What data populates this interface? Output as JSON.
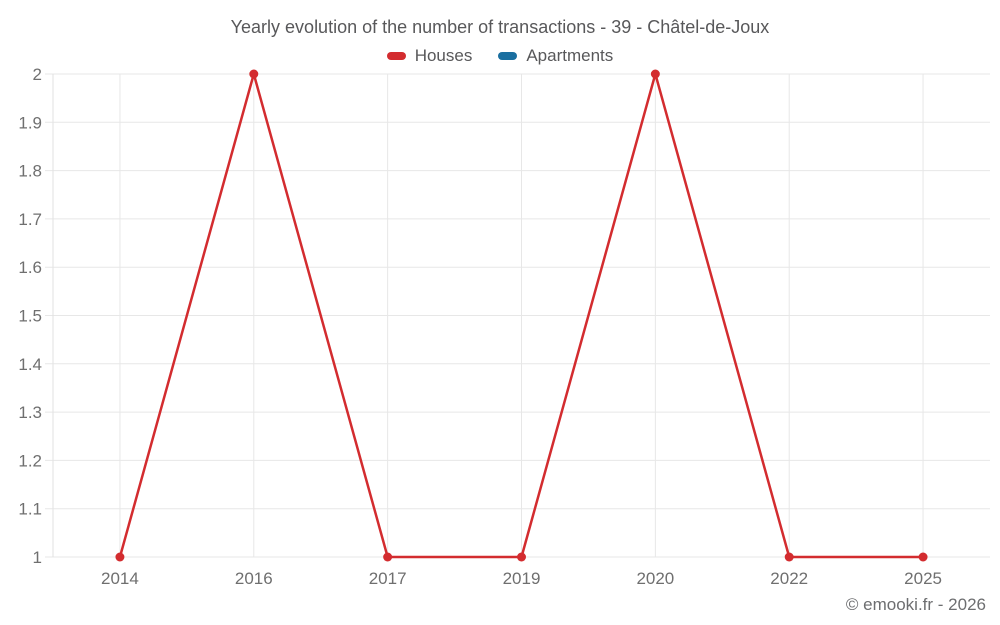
{
  "header": {
    "title": "Yearly evolution of the number of transactions - 39 - Châtel-de-Joux"
  },
  "footer": {
    "watermark": "© emooki.fr - 2026"
  },
  "chart_data": {
    "type": "line",
    "title": "Yearly evolution of the number of transactions - 39 - Châtel-de-Joux",
    "categories": [
      "2014",
      "2016",
      "2017",
      "2019",
      "2020",
      "2022",
      "2025"
    ],
    "series": [
      {
        "name": "Houses",
        "color": "#d32c2f",
        "values": [
          1,
          2,
          1,
          1,
          2,
          1,
          1
        ]
      },
      {
        "name": "Apartments",
        "color": "#1a6fa0",
        "values": []
      }
    ],
    "xlabel": "",
    "ylabel": "",
    "ylim": [
      1,
      2
    ],
    "y_tick_values": [
      1,
      1.1,
      1.2,
      1.3,
      1.4,
      1.5,
      1.6,
      1.7,
      1.8,
      1.9,
      2
    ],
    "y_tick_labels": [
      "1",
      "1.1",
      "1.2",
      "1.3",
      "1.4",
      "1.5",
      "1.6",
      "1.7",
      "1.8",
      "1.9",
      "2"
    ],
    "grid": "both",
    "legend_position": "top",
    "colors": {
      "grid_line": "#e7e7e7",
      "axis_line": "#e2e2e2",
      "tick_text": "#6f6f6f",
      "title_text": "#58585a",
      "background": "#ffffff"
    }
  }
}
